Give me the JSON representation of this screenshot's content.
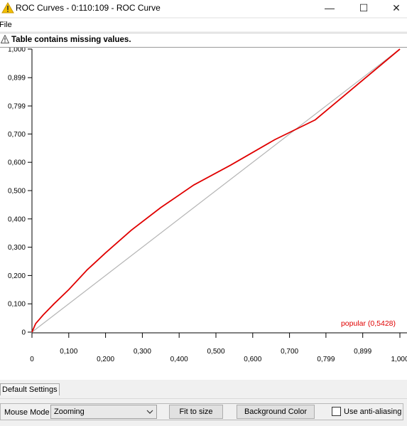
{
  "window": {
    "title": "ROC Curves - 0:110:109 - ROC Curve",
    "icon": "knime-warning-triangle-icon",
    "minimize_glyph": "—",
    "maximize_glyph": "☐",
    "close_glyph": "✕"
  },
  "menu": {
    "file": "File"
  },
  "warning": {
    "text": "Table contains missing values.",
    "icon": "warning-triangle-icon"
  },
  "chart_data": {
    "type": "line",
    "xlim": [
      0,
      1
    ],
    "ylim": [
      0,
      1
    ],
    "grid": false,
    "x_ticks_upper": [
      "0,100",
      "0,300",
      "0,500",
      "0,700",
      "0,899"
    ],
    "x_ticks_lower": [
      "0",
      "0,200",
      "0,400",
      "0,600",
      "0,799",
      "1,000"
    ],
    "y_ticks": [
      "1,000",
      "0,899",
      "0,799",
      "0,700",
      "0,600",
      "0,500",
      "0,400",
      "0,300",
      "0,200",
      "0,100",
      "0"
    ],
    "legend_position": "bottom-right",
    "series": [
      {
        "name": "popular (0,5428)",
        "color": "#e00000",
        "x": [
          0,
          0.01,
          0.03,
          0.06,
          0.1,
          0.15,
          0.2,
          0.27,
          0.35,
          0.44,
          0.54,
          0.66,
          0.77,
          1.0
        ],
        "y": [
          0,
          0.03,
          0.06,
          0.1,
          0.15,
          0.22,
          0.28,
          0.36,
          0.44,
          0.52,
          0.59,
          0.68,
          0.75,
          1.0
        ]
      },
      {
        "color": "#b4b4b4",
        "x": [
          0,
          1
        ],
        "y": [
          0,
          1
        ]
      }
    ]
  },
  "tabs": {
    "default_settings": "Default Settings"
  },
  "controls": {
    "mouse_mode_label": "Mouse Mode",
    "mouse_mode_value": "Zooming",
    "fit_button": "Fit to size",
    "background_button": "Background Color",
    "antialias_label": "Use anti-aliasing",
    "antialias_checked": false
  }
}
